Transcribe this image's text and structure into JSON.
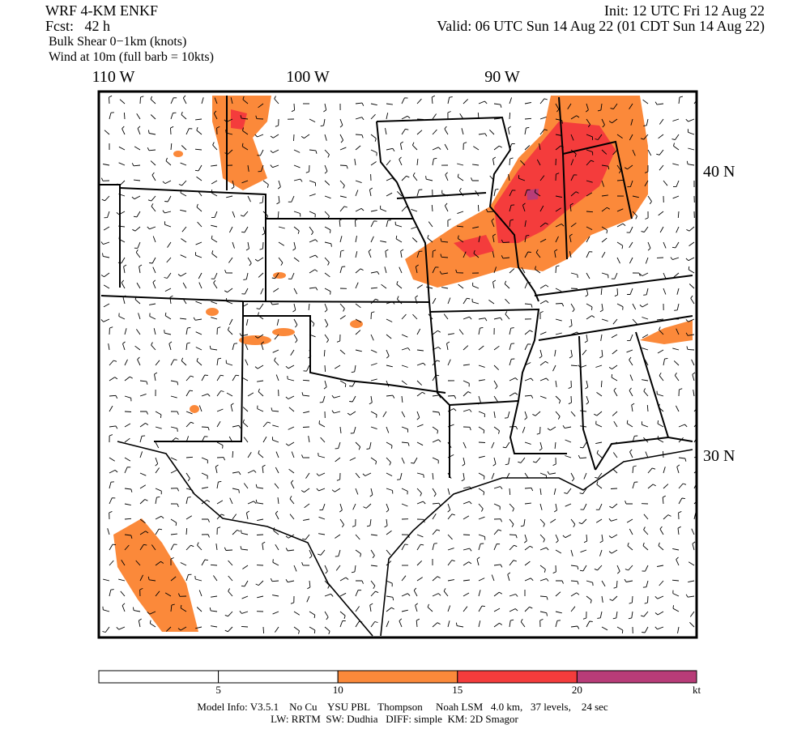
{
  "header": {
    "model": "WRF 4-KM ENKF",
    "forecast": "Fcst:   42 h",
    "init": "Init: 12 UTC Fri 12 Aug 22",
    "valid": "Valid: 06 UTC Sun 14 Aug 22 (01 CDT Sun 14 Aug 22)",
    "field": "Bulk Shear 0−1km (knots)",
    "wind": "Wind at 10m (full barb = 10kts)"
  },
  "map": {
    "longitude_labels": [
      "110 W",
      "100 W",
      "90 W"
    ],
    "latitude_labels": [
      "40 N",
      "30 N"
    ]
  },
  "colorbar": {
    "ticks": [
      5,
      10,
      15,
      20
    ],
    "unit": "kt",
    "colors": [
      "#ffffff",
      "#ffffff",
      "#fb893a",
      "#f43c3c",
      "#b83c78"
    ]
  },
  "footer": {
    "line1": "Model Info: V3.5.1    No Cu    YSU PBL   Thompson     Noah LSM   4.0 km,   37 levels,    24 sec",
    "line2": "LW: RRTM  SW: Dudhia   DIFF: simple  KM: 2D Smagor"
  }
}
